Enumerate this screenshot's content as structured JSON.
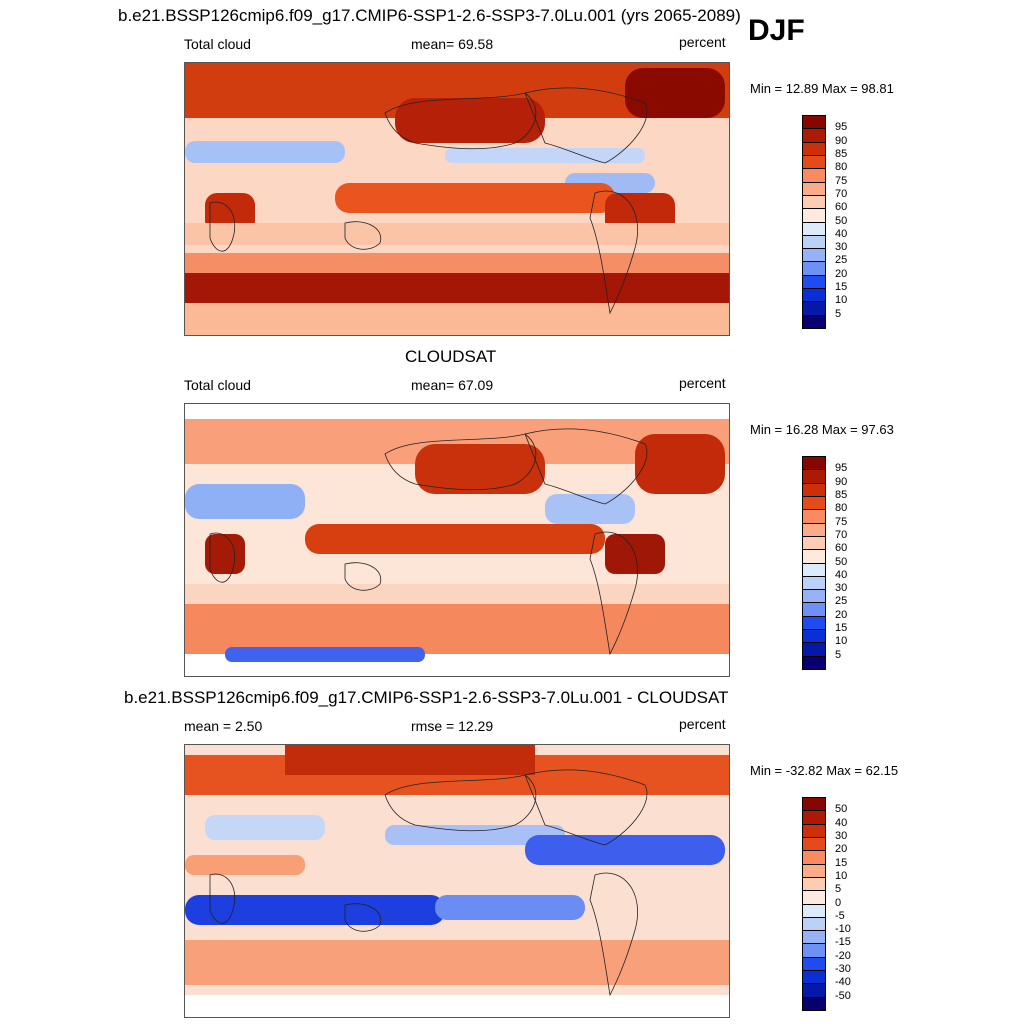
{
  "season": "DJF",
  "palette_positive": [
    "#08006e",
    "#0618a8",
    "#0a2fd6",
    "#1e4cf0",
    "#3d6af5",
    "#6d91f5",
    "#98b3f5",
    "#bcd1f7",
    "#ddeafa",
    "#fbeadd",
    "#fdcdb3",
    "#fcab88",
    "#f98a62",
    "#f4693c",
    "#e54a1b",
    "#cd2f0a",
    "#ad1a04",
    "#860700"
  ],
  "panels": [
    {
      "title": "b.e21.BSSP126cmip6.f09_g17.CMIP6-SSP1-2.6-SSP3-7.0Lu.001 (yrs 2065-2089)",
      "left_label": "Total cloud",
      "center_label": "mean=  69.58",
      "units": "percent",
      "minmax": "Min =  12.89 Max =  98.81",
      "levels": [
        "95",
        "90",
        "85",
        "80",
        "75",
        "70",
        "60",
        "50",
        "40",
        "30",
        "25",
        "20",
        "15",
        "10",
        "5"
      ]
    },
    {
      "title": "CLOUDSAT",
      "left_label": "Total cloud",
      "center_label": "mean=  67.09",
      "units": "percent",
      "minmax": "Min =  16.28 Max =  97.63",
      "levels": [
        "95",
        "90",
        "85",
        "80",
        "75",
        "70",
        "60",
        "50",
        "40",
        "30",
        "25",
        "20",
        "15",
        "10",
        "5"
      ]
    },
    {
      "title": "b.e21.BSSP126cmip6.f09_g17.CMIP6-SSP1-2.6-SSP3-7.0Lu.001 - CLOUDSAT",
      "left_label": "mean =   2.50",
      "center_label": "rmse =  12.29",
      "units": "percent",
      "minmax": "Min = -32.82 Max =  62.15",
      "levels": [
        "50",
        "40",
        "30",
        "20",
        "15",
        "10",
        "5",
        "0",
        "-5",
        "-10",
        "-15",
        "-20",
        "-30",
        "-40",
        "-50"
      ]
    }
  ]
}
